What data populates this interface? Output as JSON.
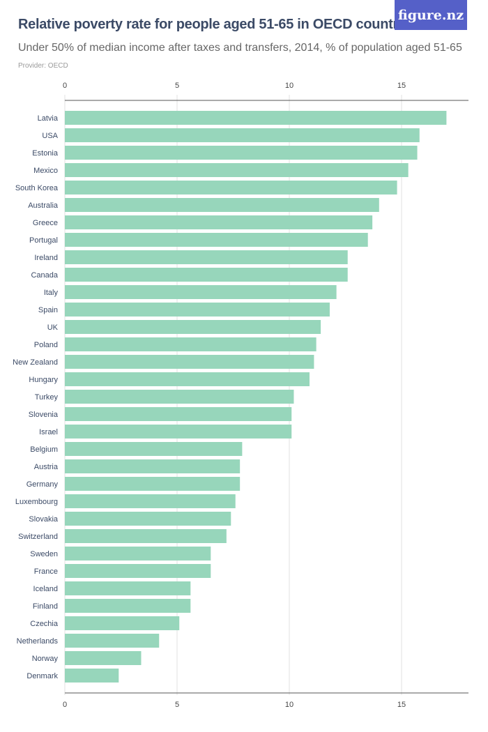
{
  "header": {
    "title": "Relative poverty rate for people aged 51-65 in OECD countries",
    "subtitle": "Under 50% of median income after taxes and transfers, 2014, % of population aged 51-65",
    "provider": "Provider: OECD",
    "logo": "figure.nz"
  },
  "colors": {
    "bar": "#97d6bb",
    "logo_bg": "#5560c8",
    "title": "#3b4a66"
  },
  "chart_data": {
    "type": "bar",
    "orientation": "horizontal",
    "title": "Relative poverty rate for people aged 51-65 in OECD countries",
    "subtitle": "Under 50% of median income after taxes and transfers, 2014, % of population aged 51-65",
    "xlim": [
      0,
      18
    ],
    "xticks": [
      0,
      5,
      10,
      15
    ],
    "grid": true,
    "categories": [
      "Latvia",
      "USA",
      "Estonia",
      "Mexico",
      "South Korea",
      "Australia",
      "Greece",
      "Portugal",
      "Ireland",
      "Canada",
      "Italy",
      "Spain",
      "UK",
      "Poland",
      "New Zealand",
      "Hungary",
      "Turkey",
      "Slovenia",
      "Israel",
      "Belgium",
      "Austria",
      "Germany",
      "Luxembourg",
      "Slovakia",
      "Switzerland",
      "Sweden",
      "France",
      "Iceland",
      "Finland",
      "Czechia",
      "Netherlands",
      "Norway",
      "Denmark"
    ],
    "values": [
      17.0,
      15.8,
      15.7,
      15.3,
      14.8,
      14.0,
      13.7,
      13.5,
      12.6,
      12.6,
      12.1,
      11.8,
      11.4,
      11.2,
      11.1,
      10.9,
      10.2,
      10.1,
      10.1,
      7.9,
      7.8,
      7.8,
      7.6,
      7.4,
      7.2,
      6.5,
      6.5,
      5.6,
      5.6,
      5.1,
      4.2,
      3.4,
      2.4
    ]
  }
}
